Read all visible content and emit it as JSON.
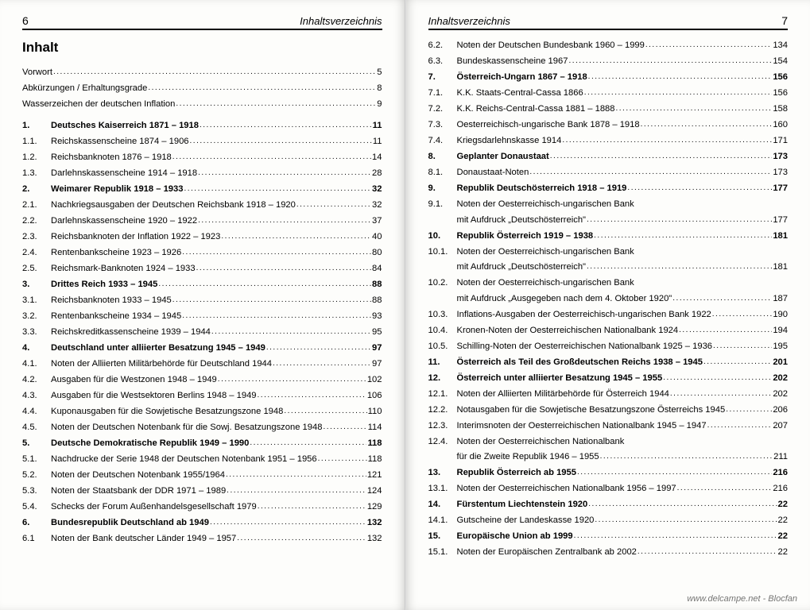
{
  "leftPage": {
    "pageNumber": "6",
    "headerTitle": "Inhaltsverzeichnis",
    "mainTitle": "Inhalt",
    "prelim": [
      {
        "label": "Vorwort",
        "page": "5"
      },
      {
        "label": "Abkürzungen / Erhaltungsgrade",
        "page": "8"
      },
      {
        "label": "Wasserzeichen der deutschen Inflation",
        "page": "9"
      }
    ],
    "entries": [
      {
        "num": "1.",
        "label": "Deutsches Kaiserreich 1871 – 1918",
        "page": "11",
        "bold": true
      },
      {
        "num": "1.1.",
        "label": "Reichskassenscheine 1874 – 1906",
        "page": "11"
      },
      {
        "num": "1.2.",
        "label": "Reichsbanknoten 1876 – 1918",
        "page": "14"
      },
      {
        "num": "1.3.",
        "label": "Darlehnskassenscheine 1914 – 1918",
        "page": "28"
      },
      {
        "num": "2.",
        "label": "Weimarer Republik 1918 – 1933",
        "page": "32",
        "bold": true
      },
      {
        "num": "2.1.",
        "label": "Nachkriegsausgaben der Deutschen Reichsbank 1918 – 1920",
        "page": "32"
      },
      {
        "num": "2.2.",
        "label": "Darlehnskassenscheine 1920 – 1922",
        "page": "37"
      },
      {
        "num": "2.3.",
        "label": "Reichsbanknoten der Inflation 1922 – 1923",
        "page": "40"
      },
      {
        "num": "2.4.",
        "label": "Rentenbankscheine 1923 – 1926",
        "page": "80"
      },
      {
        "num": "2.5.",
        "label": "Reichsmark-Banknoten 1924 – 1933",
        "page": "84"
      },
      {
        "num": "3.",
        "label": "Drittes Reich 1933 – 1945",
        "page": "88",
        "bold": true
      },
      {
        "num": "3.1.",
        "label": "Reichsbanknoten 1933 – 1945",
        "page": "88"
      },
      {
        "num": "3.2.",
        "label": "Rentenbankscheine 1934 – 1945",
        "page": "93"
      },
      {
        "num": "3.3.",
        "label": "Reichskreditkassenscheine 1939 – 1944",
        "page": "95"
      },
      {
        "num": "4.",
        "label": "Deutschland unter alliierter Besatzung 1945 – 1949",
        "page": "97",
        "bold": true
      },
      {
        "num": "4.1.",
        "label": "Noten der Alliierten Militärbehörde für Deutschland 1944",
        "page": "97"
      },
      {
        "num": "4.2.",
        "label": "Ausgaben für die Westzonen 1948 – 1949",
        "page": "102"
      },
      {
        "num": "4.3.",
        "label": "Ausgaben für die Westsektoren Berlins 1948 – 1949",
        "page": "106"
      },
      {
        "num": "4.4.",
        "label": "Kuponausgaben für die Sowjetische Besatzungszone 1948",
        "page": "110"
      },
      {
        "num": "4.5.",
        "label": "Noten der Deutschen Notenbank für die Sowj. Besatzungszone 1948",
        "page": "114"
      },
      {
        "num": "5.",
        "label": "Deutsche Demokratische Republik 1949 – 1990",
        "page": "118",
        "bold": true
      },
      {
        "num": "5.1.",
        "label": "Nachdrucke der Serie 1948 der Deutschen Notenbank 1951 – 1956",
        "page": "118"
      },
      {
        "num": "5.2.",
        "label": "Noten der Deutschen Notenbank 1955/1964",
        "page": "121"
      },
      {
        "num": "5.3.",
        "label": "Noten der Staatsbank der DDR 1971 – 1989",
        "page": "124"
      },
      {
        "num": "5.4.",
        "label": "Schecks der Forum Außenhandelsgesellschaft 1979",
        "page": "129"
      },
      {
        "num": "6.",
        "label": "Bundesrepublik Deutschland ab 1949",
        "page": "132",
        "bold": true
      },
      {
        "num": "6.1",
        "label": "Noten der Bank deutscher Länder 1949 – 1957",
        "page": "132"
      }
    ]
  },
  "rightPage": {
    "pageNumber": "7",
    "headerTitle": "Inhaltsverzeichnis",
    "entries": [
      {
        "num": "6.2.",
        "label": "Noten der Deutschen Bundesbank 1960 – 1999",
        "page": "134"
      },
      {
        "num": "6.3.",
        "label": "Bundeskassenscheine 1967",
        "page": "154"
      },
      {
        "num": "7.",
        "label": "Österreich-Ungarn 1867 – 1918",
        "page": "156",
        "bold": true
      },
      {
        "num": "7.1.",
        "label": "K.K. Staats-Central-Cassa 1866",
        "page": "156"
      },
      {
        "num": "7.2.",
        "label": "K.K. Reichs-Central-Cassa 1881 – 1888",
        "page": "158"
      },
      {
        "num": "7.3.",
        "label": "Oesterreichisch-ungarische Bank 1878 – 1918",
        "page": "160"
      },
      {
        "num": "7.4.",
        "label": "Kriegsdarlehnskasse 1914",
        "page": "171"
      },
      {
        "num": "8.",
        "label": "Geplanter Donaustaat",
        "page": "173",
        "bold": true
      },
      {
        "num": "8.1.",
        "label": "Donaustaat-Noten",
        "page": "173"
      },
      {
        "num": "9.",
        "label": "Republik Deutschösterreich 1918 – 1919",
        "page": "177",
        "bold": true
      },
      {
        "num": "9.1.",
        "label": "Noten der Oesterreichisch-ungarischen Bank",
        "continuation": true
      },
      {
        "num": "",
        "label": "mit Aufdruck „Deutschösterreich\"",
        "page": "177",
        "continuationEnd": true
      },
      {
        "num": "10.",
        "label": "Republik Österreich 1919 – 1938",
        "page": "181",
        "bold": true
      },
      {
        "num": "10.1.",
        "label": "Noten der Oesterreichisch-ungarischen Bank",
        "continuation": true
      },
      {
        "num": "",
        "label": "mit Aufdruck „Deutschösterreich\"",
        "page": "181",
        "continuationEnd": true
      },
      {
        "num": "10.2.",
        "label": "Noten der Oesterreichisch-ungarischen Bank",
        "continuation": true
      },
      {
        "num": "",
        "label": "mit Aufdruck „Ausgegeben nach dem 4. Oktober 1920\"",
        "page": "187",
        "continuationEnd": true
      },
      {
        "num": "10.3.",
        "label": "Inflations-Ausgaben der Oesterreichisch-ungarischen Bank 1922",
        "page": "190"
      },
      {
        "num": "10.4.",
        "label": "Kronen-Noten der Oesterreichischen Nationalbank 1924",
        "page": "194"
      },
      {
        "num": "10.5.",
        "label": "Schilling-Noten der Oesterreichischen Nationalbank 1925 – 1936",
        "page": "195"
      },
      {
        "num": "11.",
        "label": "Österreich als Teil des Großdeutschen Reichs 1938 – 1945",
        "page": "201",
        "bold": true
      },
      {
        "num": "12.",
        "label": "Österreich unter alliierter Besatzung 1945 – 1955",
        "page": "202",
        "bold": true
      },
      {
        "num": "12.1.",
        "label": "Noten der Alliierten Militärbehörde für Österreich 1944",
        "page": "202"
      },
      {
        "num": "12.2.",
        "label": "Notausgaben für die Sowjetische Besatzungszone Österreichs 1945",
        "page": "206"
      },
      {
        "num": "12.3.",
        "label": "Interimsnoten der Oesterreichischen Nationalbank 1945 – 1947",
        "page": "207"
      },
      {
        "num": "12.4.",
        "label": "Noten der Oesterreichischen Nationalbank",
        "continuation": true
      },
      {
        "num": "",
        "label": "für die Zweite Republik 1946 – 1955",
        "page": "211",
        "continuationEnd": true
      },
      {
        "num": "13.",
        "label": "Republik Österreich ab 1955",
        "page": "216",
        "bold": true
      },
      {
        "num": "13.1.",
        "label": "Noten der Oesterreichischen Nationalbank 1956 – 1997",
        "page": "216"
      },
      {
        "num": "14.",
        "label": "Fürstentum Liechtenstein 1920",
        "page": "22",
        "bold": true
      },
      {
        "num": "14.1.",
        "label": "Gutscheine der Landeskasse 1920",
        "page": "22"
      },
      {
        "num": "15.",
        "label": "Europäische Union ab 1999",
        "page": "22",
        "bold": true
      },
      {
        "num": "15.1.",
        "label": "Noten der Europäischen Zentralbank ab 2002",
        "page": "22"
      }
    ]
  },
  "watermark": "www.delcampe.net - Blocfan"
}
